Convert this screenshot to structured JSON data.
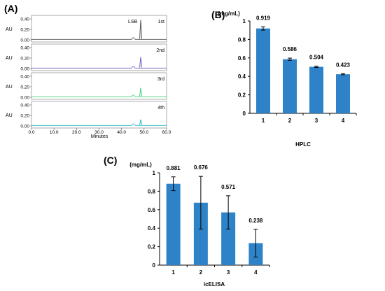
{
  "colors": {
    "bar": "#2e83c8",
    "axis": "#000000",
    "chrom_1st": "#555555",
    "chrom_2nd": "#6a5fc0",
    "chrom_3rd": "#3bd17a",
    "chrom_4th": "#2ab7c9"
  },
  "panel_a": {
    "label": "(A)",
    "peak_label": "LSB",
    "x_title": "Minutes",
    "y_unit": "AU",
    "y_ticks": [
      "0.00",
      "0.20",
      "0.40"
    ],
    "x_ticks": [
      "0.0",
      "10.0",
      "20.0",
      "30.0",
      "40.0",
      "50.0",
      "60.0"
    ],
    "runs": [
      "1st",
      "2nd",
      "3rd",
      "4th"
    ]
  },
  "panel_b": {
    "label": "(B)",
    "unit": "(mg/mL)",
    "x_title": "HPLC",
    "y_ticks": [
      "0",
      "0.2",
      "0.4",
      "0.6",
      "0.8",
      "1"
    ]
  },
  "panel_c": {
    "label": "(C)",
    "unit": "(mg/mL)",
    "x_title": "icELISA",
    "y_ticks": [
      "0",
      "0.2",
      "0.4",
      "0.6",
      "0.8",
      "1"
    ]
  },
  "chart_data": [
    {
      "type": "line",
      "panel": "(A)",
      "xlabel": "Minutes",
      "ylabel": "AU",
      "xlim": [
        0,
        60
      ],
      "ylim": [
        0,
        0.4
      ],
      "series": [
        {
          "name": "1st",
          "peak_x": 48.5,
          "peak_y": 0.38
        },
        {
          "name": "2nd",
          "peak_x": 48.5,
          "peak_y": 0.22
        },
        {
          "name": "3rd",
          "peak_x": 48.5,
          "peak_y": 0.18
        },
        {
          "name": "4th",
          "peak_x": 48.5,
          "peak_y": 0.12
        }
      ],
      "annotations": [
        "LSB"
      ]
    },
    {
      "type": "bar",
      "panel": "(B)",
      "categories": [
        "1",
        "2",
        "3",
        "4"
      ],
      "values": [
        0.919,
        0.586,
        0.504,
        0.423
      ],
      "errors": [
        0.018,
        0.012,
        0.008,
        0.006
      ],
      "value_labels": [
        "0.919",
        "0.586",
        "0.504",
        "0.423"
      ],
      "xlabel": "HPLC",
      "ylabel": "(mg/mL)",
      "ylim": [
        0,
        1
      ]
    },
    {
      "type": "bar",
      "panel": "(C)",
      "categories": [
        "1",
        "2",
        "3",
        "4"
      ],
      "values": [
        0.881,
        0.676,
        0.571,
        0.238
      ],
      "errors": [
        0.075,
        0.285,
        0.18,
        0.15
      ],
      "value_labels": [
        "0.881",
        "0.676",
        "0.571",
        "0.238"
      ],
      "xlabel": "icELISA",
      "ylabel": "(mg/mL)",
      "ylim": [
        0,
        1
      ]
    }
  ]
}
